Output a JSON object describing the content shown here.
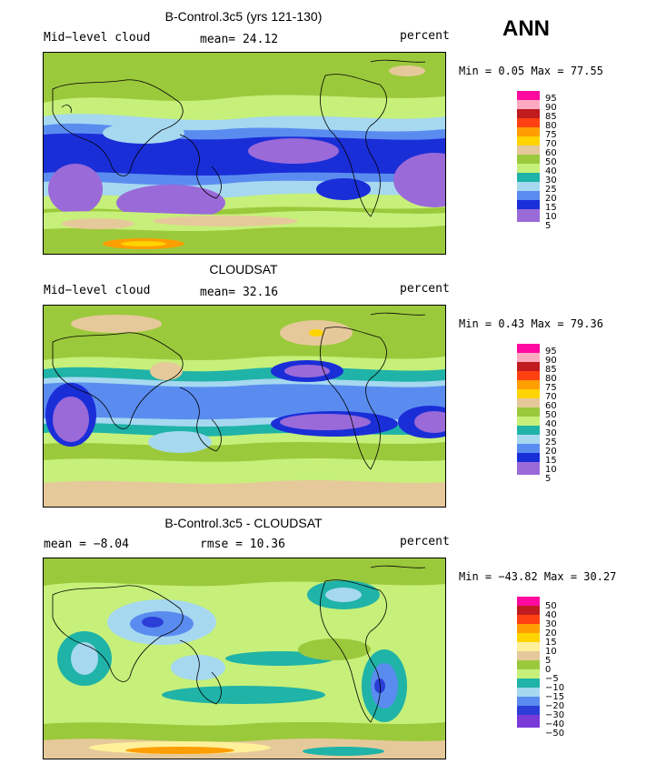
{
  "season": "ANN",
  "panels": [
    {
      "title": "B-Control.3c5 (yrs 121-130)",
      "left_label": "Mid−level cloud",
      "mid_label": "mean=  24.12",
      "right_label": "percent",
      "minmax": "Min =    0.05 Max =  77.55",
      "colorbar_labels": [
        "95",
        "90",
        "85",
        "80",
        "75",
        "70",
        "60",
        "50",
        "40",
        "30",
        "25",
        "20",
        "15",
        "10",
        "5"
      ]
    },
    {
      "title": "CLOUDSAT",
      "left_label": "Mid−level cloud",
      "mid_label": "mean=  32.16",
      "right_label": "percent",
      "minmax": "Min =    0.43 Max =  79.36",
      "colorbar_labels": [
        "95",
        "90",
        "85",
        "80",
        "75",
        "70",
        "60",
        "50",
        "40",
        "30",
        "25",
        "20",
        "15",
        "10",
        "5"
      ]
    },
    {
      "title": "B-Control.3c5 - CLOUDSAT",
      "left_label": "mean =   −8.04",
      "mid_label": "rmse =   10.36",
      "right_label": "percent",
      "minmax": "Min = −43.82 Max =   30.27",
      "colorbar_labels": [
        "50",
        "40",
        "30",
        "20",
        "15",
        "10",
        "5",
        "0",
        "−5",
        "−10",
        "−15",
        "−20",
        "−30",
        "−40",
        "−50"
      ]
    }
  ],
  "colors": {
    "abs_scale": [
      "#ff0aa0",
      "#ffaac0",
      "#c01c20",
      "#ff4010",
      "#ff9e00",
      "#ffd400",
      "#e6c99a",
      "#9bc93c",
      "#c6f07a",
      "#20b3a8",
      "#a6d8f0",
      "#5a8cf0",
      "#1a2ed8",
      "#9a6ad8"
    ],
    "diff_scale": [
      "#ff0aa0",
      "#c01c20",
      "#ff4010",
      "#ff9e00",
      "#ffd400",
      "#fff09a",
      "#e6c99a",
      "#9bc93c",
      "#c6f07a",
      "#20b3a8",
      "#a6d8f0",
      "#5a8cf0",
      "#2b3fd8",
      "#7a3ad8"
    ]
  }
}
